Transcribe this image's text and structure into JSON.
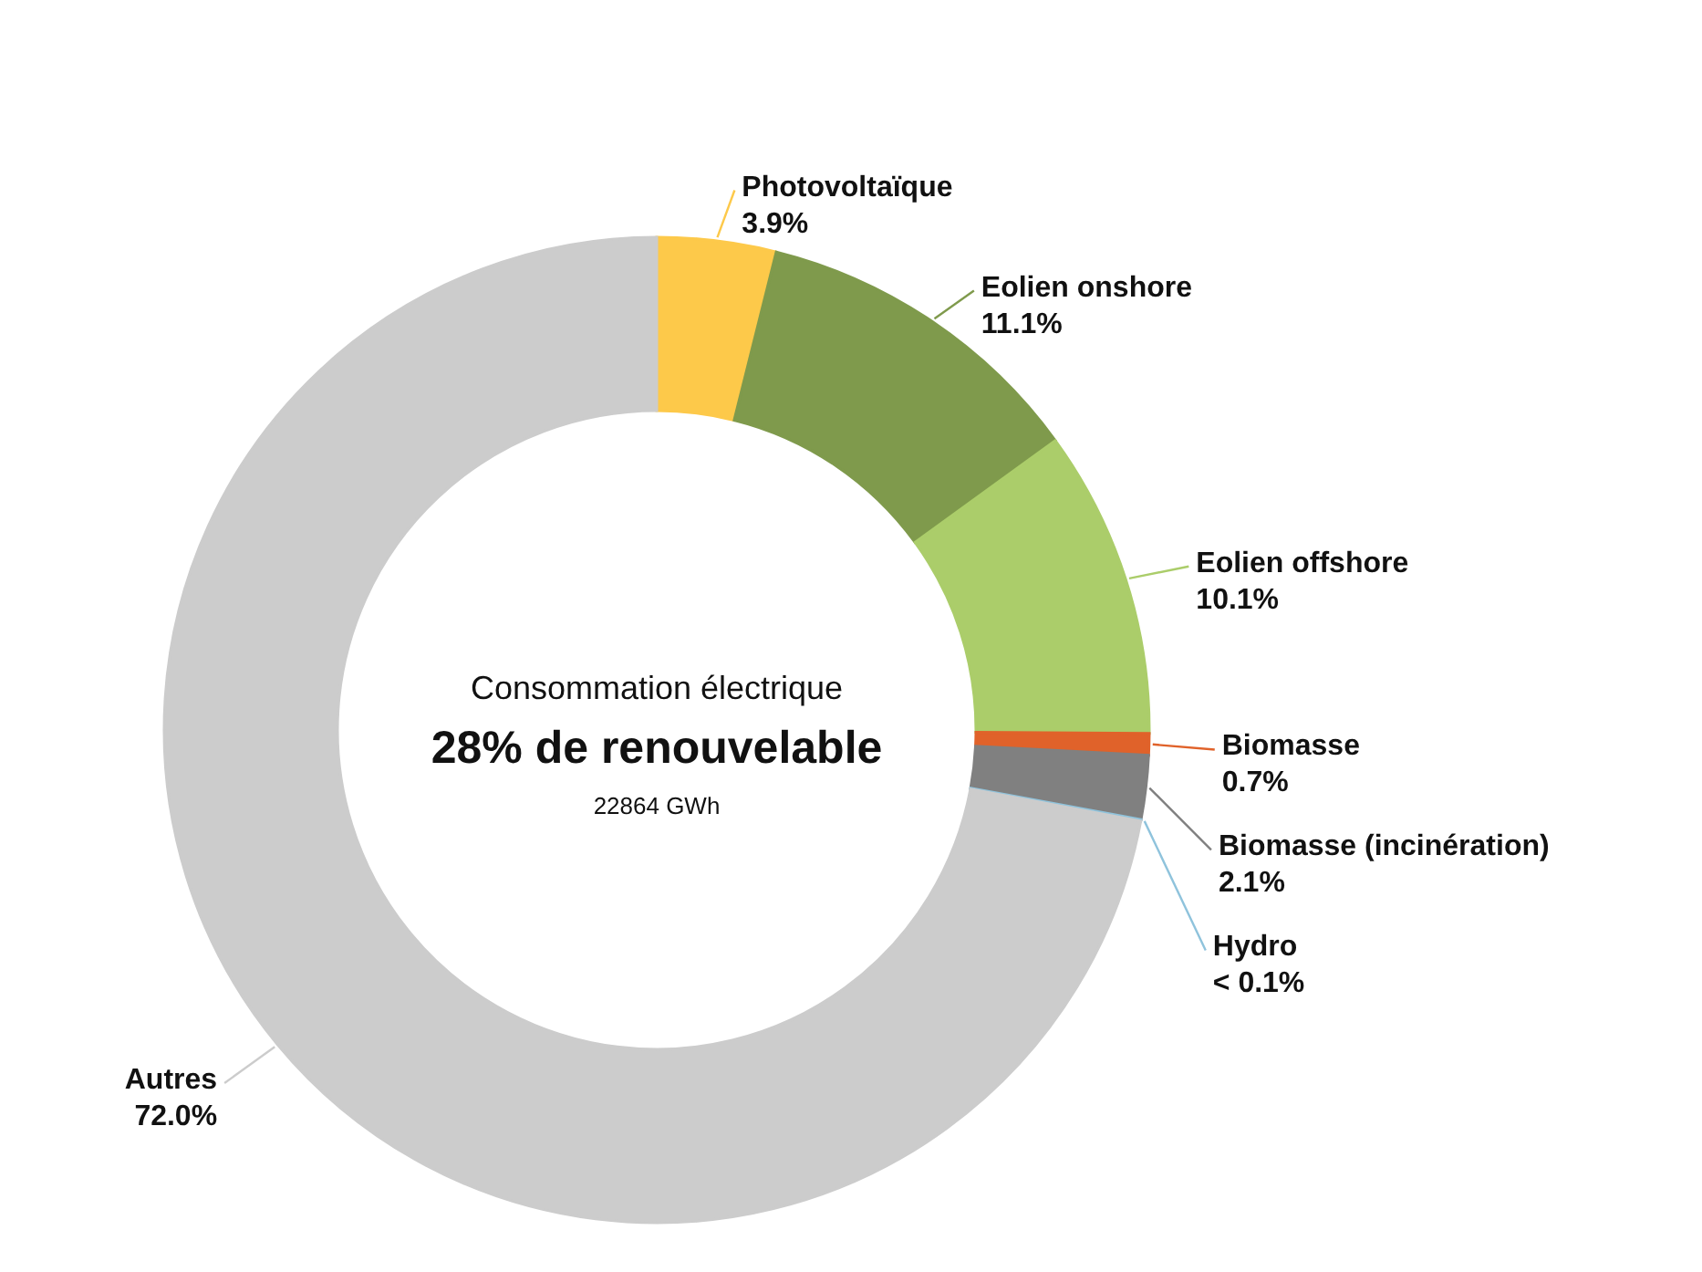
{
  "chart_data": {
    "type": "donut",
    "title": "28% de renouvelable",
    "subtitle": "Consommation électrique",
    "annotations": [
      "22864 GWh"
    ],
    "categories": [
      "Photovoltaïque",
      "Eolien onshore",
      "Eolien offshore",
      "Biomasse",
      "Biomasse (incinération)",
      "Hydro",
      "Autres"
    ],
    "values": [
      3.9,
      11.1,
      10.1,
      0.7,
      2.1,
      0.05,
      72.0
    ],
    "value_labels": [
      "3.9%",
      "11.1%",
      "10.1%",
      "0.7%",
      "2.1%",
      "< 0.1%",
      "72.0%"
    ],
    "colors": [
      "#fdc94a",
      "#7f9a4c",
      "#abcd6a",
      "#e0622a",
      "#808080",
      "#8fc3dc",
      "#cccccc"
    ]
  }
}
